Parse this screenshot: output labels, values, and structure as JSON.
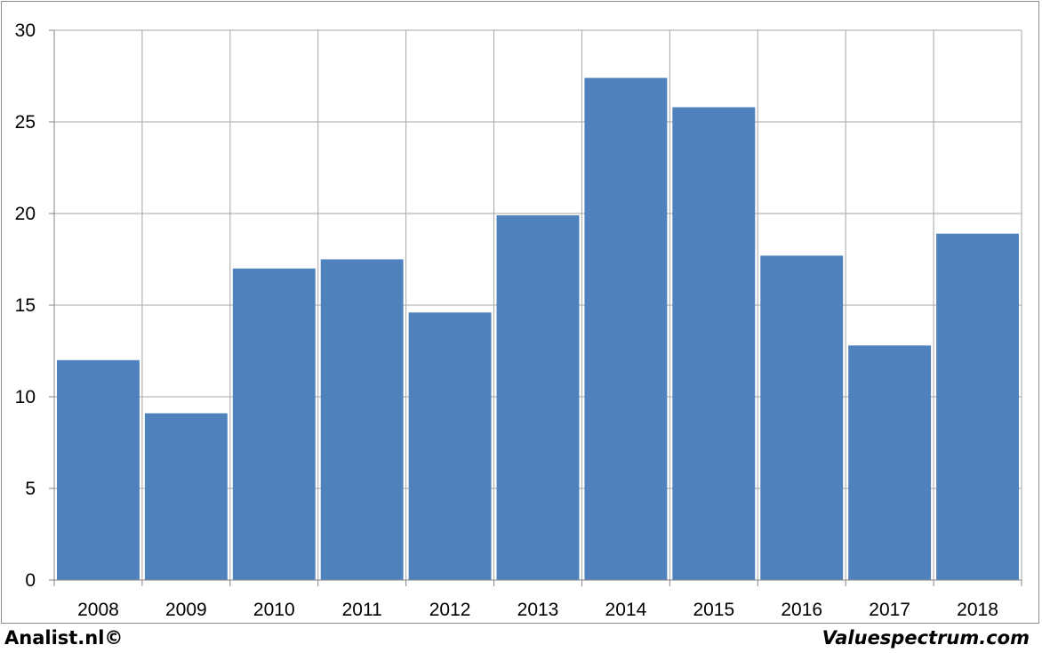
{
  "chart_data": {
    "type": "bar",
    "categories": [
      "2008",
      "2009",
      "2010",
      "2011",
      "2012",
      "2013",
      "2014",
      "2015",
      "2016",
      "2017",
      "2018"
    ],
    "values": [
      12.0,
      9.1,
      17.0,
      17.5,
      14.6,
      19.9,
      27.4,
      25.8,
      17.7,
      12.8,
      18.9
    ],
    "yticks": [
      0,
      5,
      10,
      15,
      20,
      25,
      30
    ],
    "ylim": [
      0,
      30
    ],
    "grid": true,
    "bar_color": "#4f81bd",
    "grid_color": "#a6a6a6"
  },
  "footer": {
    "left": "Analist.nl©",
    "right": "Valuespectrum.com"
  }
}
